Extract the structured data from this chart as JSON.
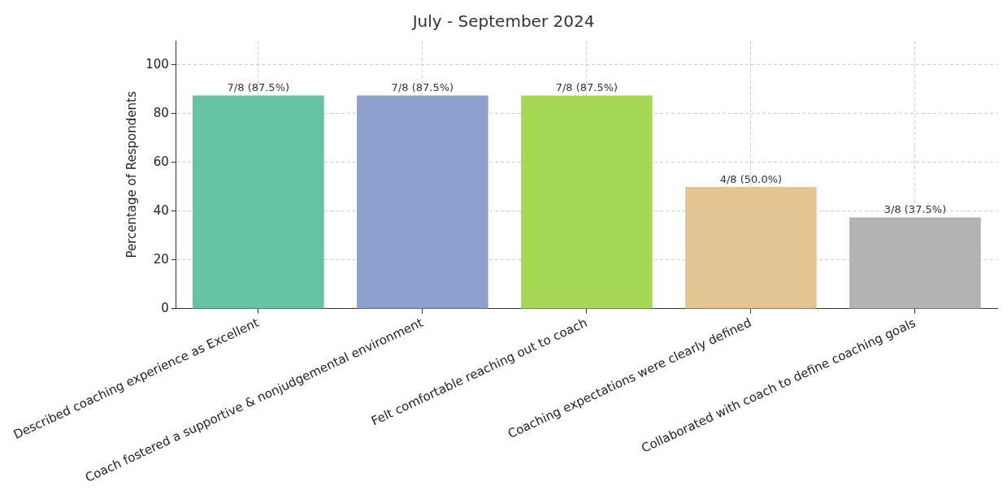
{
  "chart_data": {
    "type": "bar",
    "title": "July - September 2024",
    "ylabel": "Percentage of Respondents",
    "categories": [
      "Described coaching experience as Excellent",
      "Coach fostered a supportive & nonjudgemental environment",
      "Felt comfortable reaching out to coach",
      "Coaching expectations were clearly defined",
      "Collaborated with coach to define coaching goals"
    ],
    "values": [
      87.5,
      87.5,
      87.5,
      50,
      37.5
    ],
    "colors": [
      "#66c2a5",
      "#8da0cb",
      "#a6d854",
      "#e5c494",
      "#b3b3b3"
    ],
    "value_labels": [
      "7/8 (87.5%)",
      "7/8 (87.5%)",
      "7/8 (87.5%)",
      "4/8 (50.0%)",
      "3/8 (37.5%)"
    ],
    "ylim": [
      0,
      110
    ],
    "yticks": [
      0,
      20,
      40,
      60,
      80,
      100
    ],
    "grid": true,
    "legend": false
  }
}
